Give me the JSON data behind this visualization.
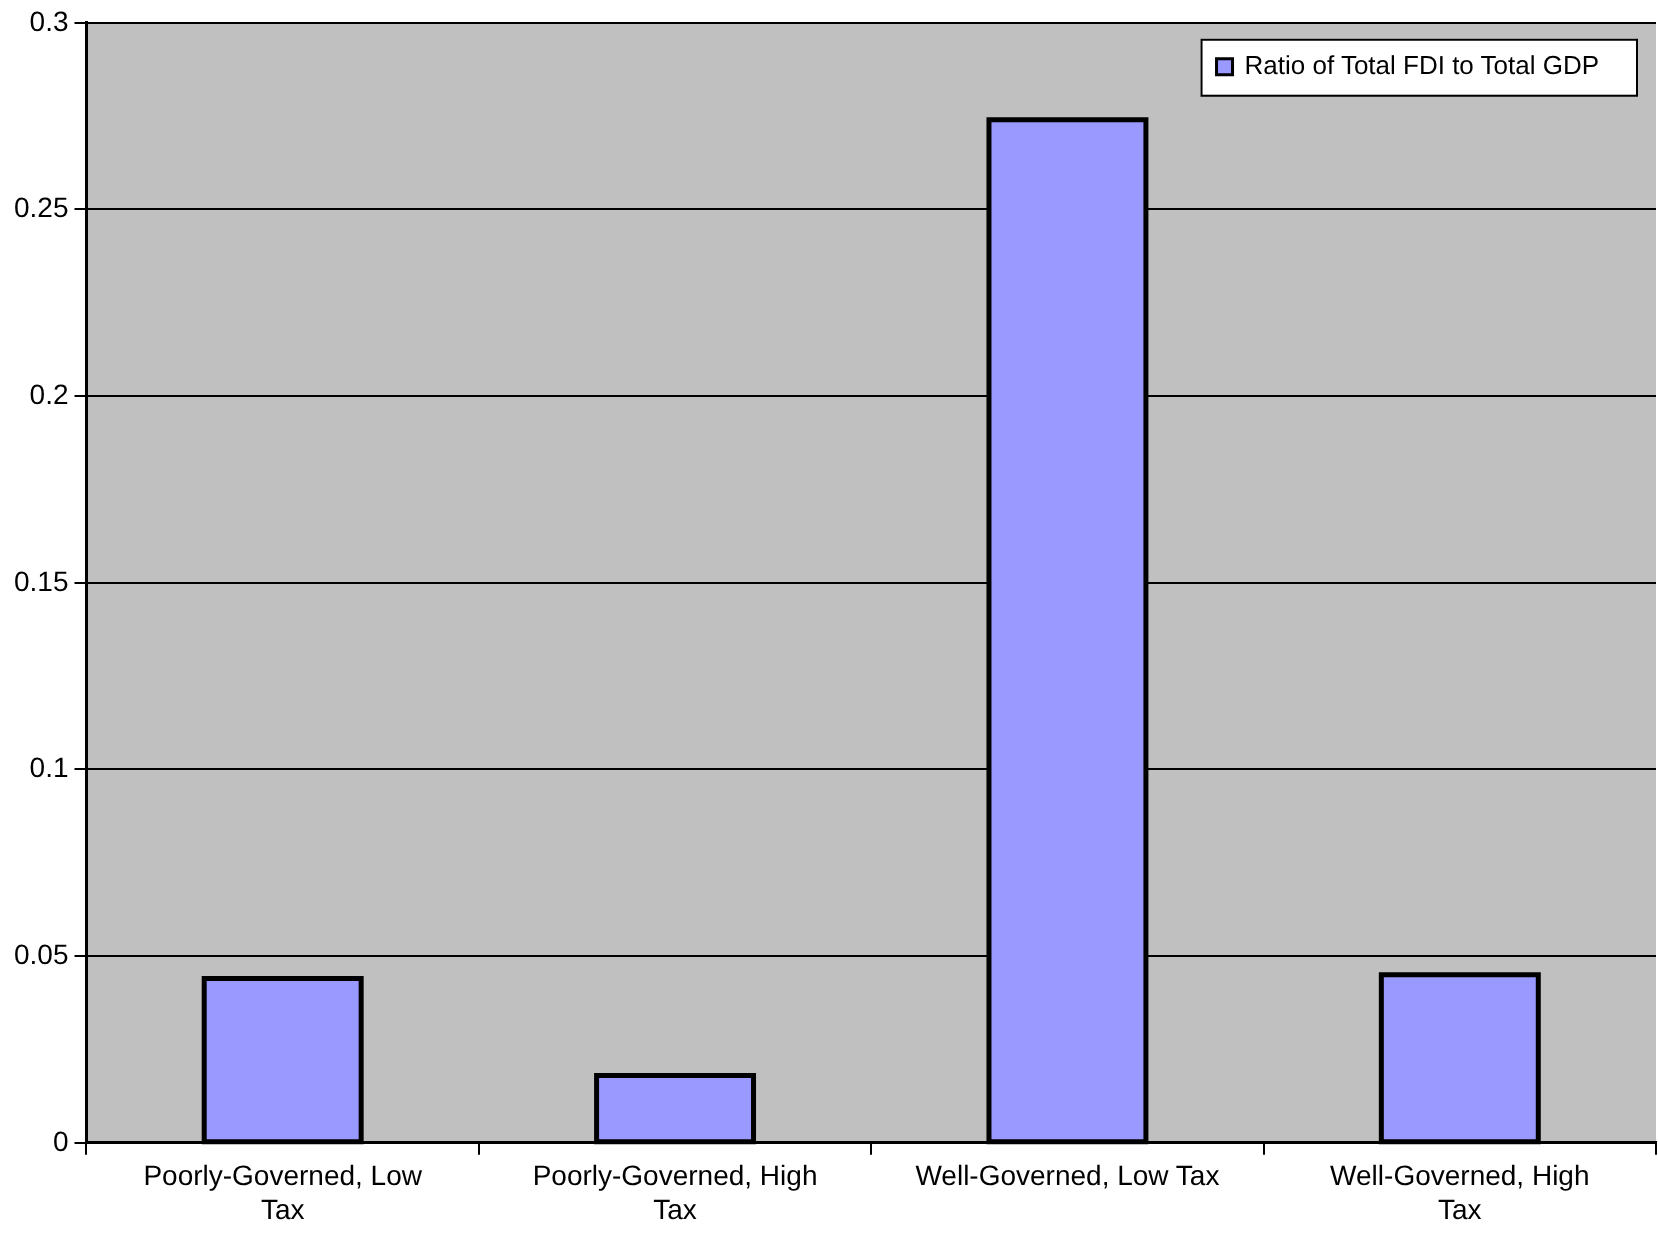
{
  "chart_data": {
    "type": "bar",
    "categories": [
      "Poorly-Governed, Low Tax",
      "Poorly-Governed, High Tax",
      "Well-Governed, Low Tax",
      "Well-Governed, High Tax"
    ],
    "series": [
      {
        "name": "Ratio of Total FDI to Total GDP",
        "color": "#9999ff",
        "values": [
          0.044,
          0.018,
          0.274,
          0.045
        ]
      }
    ],
    "ylim": [
      0,
      0.3
    ],
    "yticks": [
      0,
      0.05,
      0.1,
      0.15,
      0.2,
      0.25,
      0.3
    ],
    "grid": "y",
    "legend": "top right"
  }
}
